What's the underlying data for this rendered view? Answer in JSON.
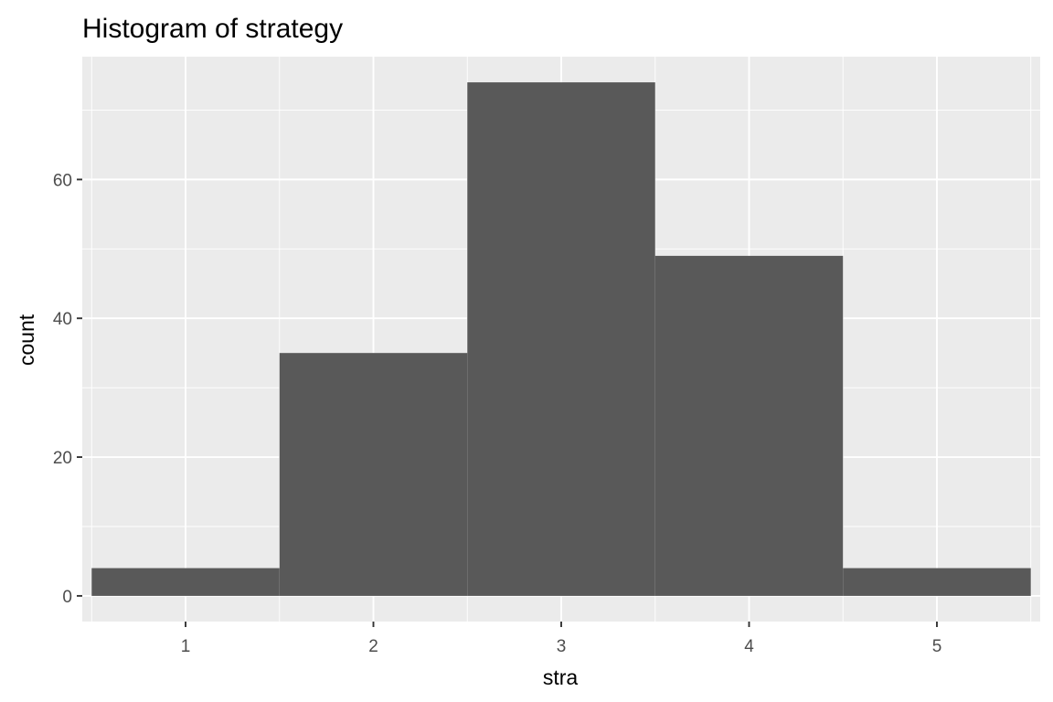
{
  "chart_data": {
    "type": "bar",
    "title": "Histogram of strategy",
    "xlabel": "stra",
    "ylabel": "count",
    "bins": [
      {
        "x": 1,
        "count": 4
      },
      {
        "x": 2,
        "count": 35
      },
      {
        "x": 3,
        "count": 74
      },
      {
        "x": 4,
        "count": 49
      },
      {
        "x": 5,
        "count": 4
      }
    ],
    "binwidth": 1,
    "xlim": [
      0.45,
      5.55
    ],
    "ylim": [
      -3.7,
      77.7
    ],
    "x_ticks": [
      1,
      2,
      3,
      4,
      5
    ],
    "x_tick_labels": [
      "1",
      "2",
      "3",
      "4",
      "5"
    ],
    "y_ticks": [
      0,
      20,
      40,
      60
    ],
    "y_tick_labels": [
      "0",
      "20",
      "40",
      "60"
    ],
    "y_minor_ticks": [
      10,
      30,
      50,
      70
    ],
    "grid": true,
    "legend": "none"
  },
  "colors": {
    "bar_fill": "#595959",
    "panel_background": "#EBEBEB",
    "grid_line": "#FFFFFF",
    "tick_mark": "#333333",
    "tick_label": "#4D4D4D",
    "text": "#000000"
  }
}
